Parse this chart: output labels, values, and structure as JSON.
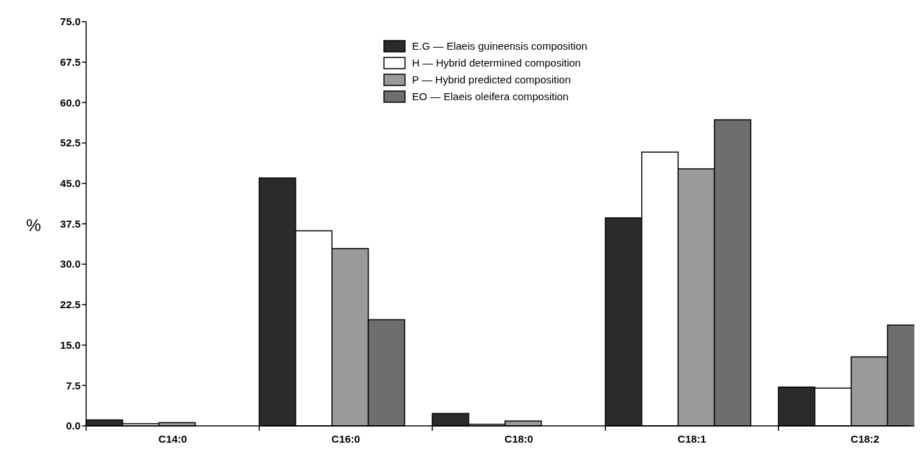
{
  "chart_data": {
    "type": "bar",
    "ylabel": "%",
    "categories": [
      "C14:0",
      "C16:0",
      "C18:0",
      "C18:1",
      "C18:2"
    ],
    "series": [
      {
        "name": "E.G — Elaeis guineensis composition",
        "color": "#2b2b2b",
        "values": [
          1.1,
          46.0,
          2.3,
          38.6,
          7.2
        ]
      },
      {
        "name": "H — Hybrid determined composition",
        "color": "#ffffff",
        "values": [
          0.4,
          36.2,
          0.3,
          50.8,
          7.0
        ]
      },
      {
        "name": "P — Hybrid predicted composition",
        "color": "#9a9a9a",
        "values": [
          0.6,
          32.9,
          0.9,
          47.7,
          12.8
        ]
      },
      {
        "name": "EO — Elaeis oleifera composition",
        "color": "#6e6e6e",
        "values": [
          0,
          19.7,
          0,
          56.8,
          18.7
        ]
      }
    ],
    "ylim": [
      0,
      75
    ],
    "yticks": [
      {
        "value": 0,
        "label": "0.0"
      },
      7.5,
      {
        "value": 15,
        "label": "15.0"
      },
      22.5,
      {
        "value": 30,
        "label": "30.0"
      },
      37.5,
      {
        "value": 45,
        "label": "45.0"
      },
      52.5,
      {
        "value": 60,
        "label": "60.0"
      },
      67.5,
      {
        "value": 75,
        "label": "75.0"
      }
    ],
    "grid": false,
    "legend": "top"
  }
}
